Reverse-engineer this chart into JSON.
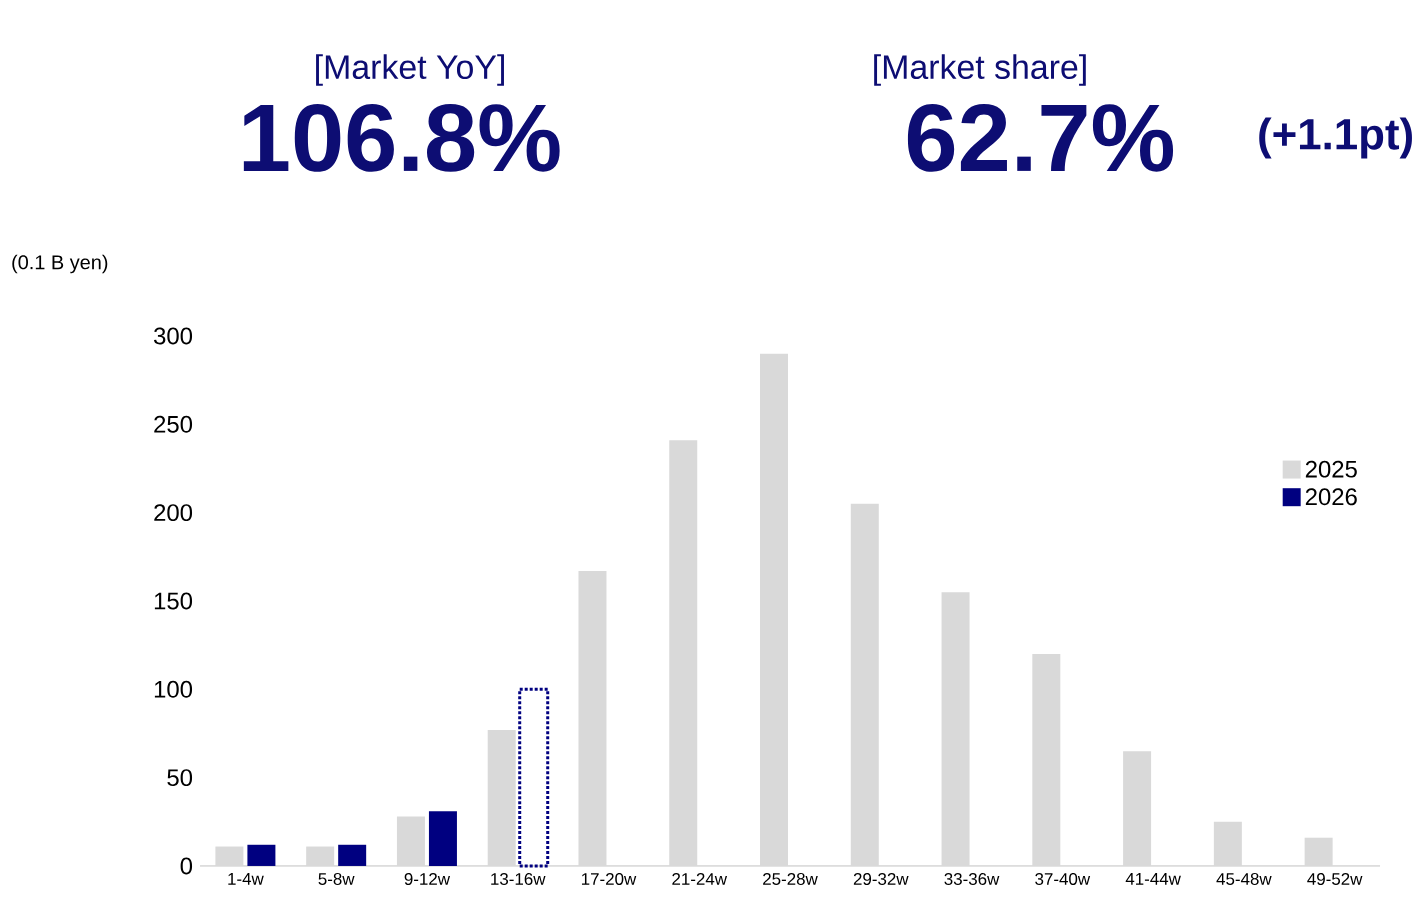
{
  "chart_data": {
    "type": "bar",
    "ylabel": "(0.1 B yen)",
    "annotations": [
      "[Market YoY]",
      "106.8%",
      "[Market share]",
      "62.7%",
      "(+1.1pt)"
    ],
    "categories": [
      "1-4w",
      "5-8w",
      "9-12w",
      "13-16w",
      "17-20w",
      "21-24w",
      "25-28w",
      "29-32w",
      "33-36w",
      "37-40w",
      "41-44w",
      "45-48w",
      "49-52w"
    ],
    "series": [
      {
        "name": "2025",
        "color": "#d9d9d9",
        "values": [
          11,
          11,
          28,
          77,
          167,
          241,
          290,
          205,
          155,
          120,
          65,
          25,
          16
        ]
      },
      {
        "name": "2026",
        "color": "#000080",
        "values": [
          12,
          12,
          31,
          null,
          null,
          null,
          null,
          null,
          null,
          null,
          null,
          null,
          null
        ]
      },
      {
        "color": "#000080",
        "line_style": "dotted",
        "values": [
          null,
          null,
          null,
          100,
          null,
          null,
          null,
          null,
          null,
          null,
          null,
          null,
          null
        ]
      }
    ],
    "ylim": [
      0,
      300
    ],
    "yticks": [
      0,
      50,
      100,
      150,
      200,
      250,
      300
    ],
    "legend": "right"
  }
}
